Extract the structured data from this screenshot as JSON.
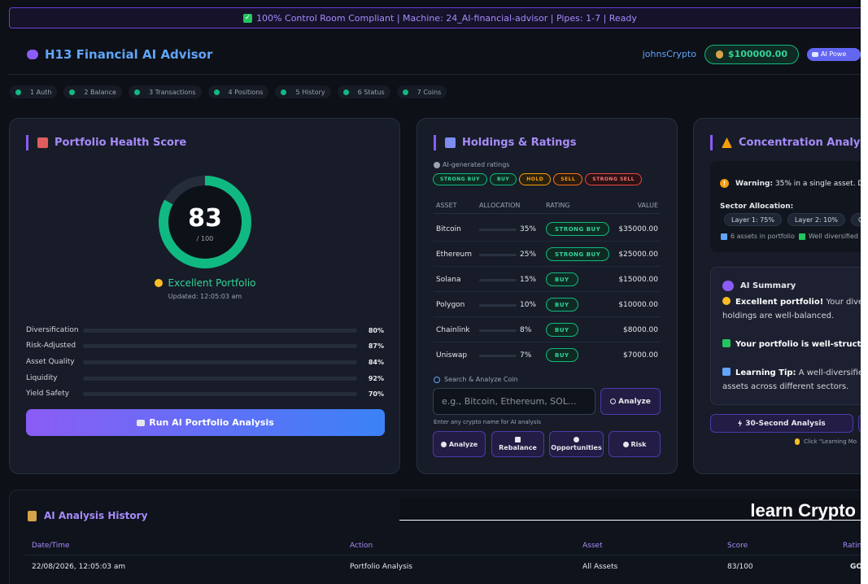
{
  "banner": {
    "text": "100% Control Room Compliant | Machine: 24_AI-financial-advisor | Pipes: 1-7 | Ready"
  },
  "header": {
    "title": "H13 Financial AI Advisor",
    "username": "johnsCrypto",
    "balance": "$100000.00",
    "ai_badge": "AI Powe"
  },
  "pipes": [
    "1 Auth",
    "2 Balance",
    "3 Transactions",
    "4 Positions",
    "5 History",
    "6 Status",
    "7 Coins"
  ],
  "health": {
    "title": "Portfolio Health Score",
    "score": "83",
    "score_value": 83,
    "score_max": "/ 100",
    "verdict": "Excellent Portfolio",
    "updated": "Updated: 12:05:03 am",
    "metrics": [
      {
        "label": "Diversification",
        "pct": "80%",
        "value": 80,
        "color": "#8b5cf6"
      },
      {
        "label": "Risk-Adjusted",
        "pct": "87%",
        "value": 87,
        "color": "#06b6d4"
      },
      {
        "label": "Asset Quality",
        "pct": "84%",
        "value": 84,
        "color": "#3b82f6"
      },
      {
        "label": "Liquidity",
        "pct": "92%",
        "value": 92,
        "color": "#10b981"
      },
      {
        "label": "Yield Safety",
        "pct": "70%",
        "value": 70,
        "color": "#f59e0b"
      }
    ],
    "run_button": "Run AI Portfolio Analysis"
  },
  "holdings": {
    "title": "Holdings & Ratings",
    "subtitle": "AI-generated ratings",
    "legend": [
      "STRONG BUY",
      "BUY",
      "HOLD",
      "SELL",
      "STRONG SELL"
    ],
    "columns": [
      "ASSET",
      "ALLOCATION",
      "RATING",
      "VALUE"
    ],
    "rows": [
      {
        "asset": "Bitcoin",
        "allocation": "35%",
        "alloc_value": 35,
        "bar_color": "#ef4444",
        "rating": "STRONG BUY",
        "value": "$35000.00"
      },
      {
        "asset": "Ethereum",
        "allocation": "25%",
        "alloc_value": 25,
        "bar_color": "#8b5cf6",
        "rating": "STRONG BUY",
        "value": "$25000.00"
      },
      {
        "asset": "Solana",
        "allocation": "15%",
        "alloc_value": 15,
        "bar_color": "#8b5cf6",
        "rating": "BUY",
        "value": "$15000.00"
      },
      {
        "asset": "Polygon",
        "allocation": "10%",
        "alloc_value": 10,
        "bar_color": "#8b5cf6",
        "rating": "BUY",
        "value": "$10000.00"
      },
      {
        "asset": "Chainlink",
        "allocation": "8%",
        "alloc_value": 8,
        "bar_color": "#8b5cf6",
        "rating": "BUY",
        "value": "$8000.00"
      },
      {
        "asset": "Uniswap",
        "allocation": "7%",
        "alloc_value": 7,
        "bar_color": "#8b5cf6",
        "rating": "BUY",
        "value": "$7000.00"
      }
    ],
    "search_label": "Search & Analyze Coin",
    "search_placeholder": "e.g., Bitcoin, Ethereum, SOL...",
    "analyze_button": "Analyze",
    "hint": "Enter any crypto name for AI analysis",
    "quick_actions": [
      "Analyze",
      "Rebalance",
      "Opportunities",
      "Risk"
    ]
  },
  "concentration": {
    "title": "Concentration Analysis",
    "warning_label": "Warning:",
    "warning_text": "35% in a single asset. D",
    "sector_label": "Sector Allocation:",
    "sectors": [
      "Layer 1: 75%",
      "Layer 2: 10%",
      "C"
    ],
    "assets_text": "6 assets in portfolio",
    "diversified_text": "Well diversified",
    "summary_title": "AI Summary",
    "summary_1_bold": "Excellent portfolio!",
    "summary_1_rest": "Your divers",
    "summary_1_line2": "holdings are well-balanced.",
    "summary_2_bold": "Your portfolio is well-structure",
    "summary_3_bold": "Learning Tip:",
    "summary_3_rest": "A well-diversified",
    "summary_3_line2": "assets across different sectors.",
    "btn_30": "30-Second Analysis",
    "tip": "Click \"Learning Mo"
  },
  "history": {
    "title": "AI Analysis History",
    "columns": [
      "Date/Time",
      "Action",
      "Asset",
      "Score",
      "Rating"
    ],
    "rows": [
      {
        "datetime": "22/08/2026, 12:05:03 am",
        "action": "Portfolio Analysis",
        "asset": "All Assets",
        "score": "83/100",
        "rating": "GO"
      }
    ]
  },
  "overlay": {
    "learn_text": "learn Crypto"
  }
}
